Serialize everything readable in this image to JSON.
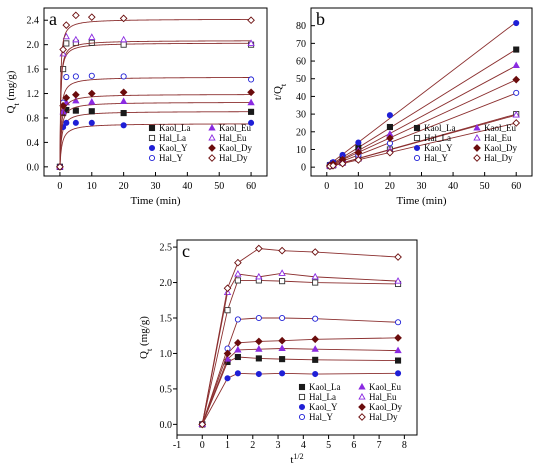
{
  "colors": {
    "kaol": "#1a1a1a",
    "hal": "#333333",
    "Y": "#1f1fd6",
    "Eu": "#8b2be2",
    "Dy": "#6b0d0d",
    "fit": "#8b2f2f"
  },
  "chart_data": [
    {
      "type": "scatter",
      "panel": "a",
      "xlabel": "Time (min)",
      "ylabel": "Qt (mg/g)",
      "ylabel_main": "Q",
      "ylabel_sub": "t",
      "ylabel_unit": " (mg/g)",
      "xlim": [
        -5,
        65
      ],
      "ylim": [
        -0.15,
        2.6
      ],
      "xticks": [
        0,
        10,
        20,
        30,
        40,
        50,
        60
      ],
      "yticks": [
        0.0,
        0.4,
        0.8,
        1.2,
        1.6,
        2.0,
        2.4
      ],
      "ytick_labels": [
        "0.0",
        "0.4",
        "0.8",
        "1.2",
        "1.6",
        "2.0",
        "2.4"
      ],
      "legend": {
        "columns": 2,
        "placement": "lower right"
      },
      "x": [
        0,
        1,
        2,
        5,
        10,
        20,
        60
      ],
      "series": [
        {
          "name": "Kaol_La",
          "marker": "square-filled",
          "color": "kaol",
          "values": [
            0,
            0.88,
            0.93,
            0.92,
            0.91,
            0.88,
            0.9
          ],
          "fit_eq": 0.91
        },
        {
          "name": "Hal_La",
          "marker": "square-open",
          "color": "hal",
          "values": [
            0,
            1.6,
            2.02,
            2.03,
            2.03,
            2.0,
            2.0
          ],
          "fit_eq": 2.03
        },
        {
          "name": "Kaol_Y",
          "marker": "circle-filled",
          "color": "Y",
          "values": [
            0,
            0.65,
            0.72,
            0.72,
            0.72,
            0.68,
            0.72
          ],
          "fit_eq": 0.71
        },
        {
          "name": "Hal_Y",
          "marker": "circle-open",
          "color": "Y",
          "values": [
            0,
            1.05,
            1.47,
            1.48,
            1.49,
            1.48,
            1.43
          ],
          "fit_eq": 1.47
        },
        {
          "name": "Kaol_Eu",
          "marker": "triangle-filled",
          "color": "Eu",
          "values": [
            0,
            0.9,
            1.05,
            1.08,
            1.06,
            1.07,
            1.05
          ],
          "fit_eq": 1.06
        },
        {
          "name": "Hal_Eu",
          "marker": "triangle-open",
          "color": "Eu",
          "values": [
            0,
            1.85,
            2.13,
            2.08,
            2.12,
            2.08,
            2.02
          ],
          "fit_eq": 2.07
        },
        {
          "name": "Kaol_Dy",
          "marker": "diamond-filled",
          "color": "Dy",
          "values": [
            0,
            1.0,
            1.13,
            1.18,
            1.2,
            1.22,
            1.22
          ],
          "fit_eq": 1.19
        },
        {
          "name": "Hal_Dy",
          "marker": "diamond-open",
          "color": "Dy",
          "values": [
            0,
            1.92,
            2.32,
            2.48,
            2.45,
            2.43,
            2.4
          ],
          "fit_eq": 2.42
        }
      ]
    },
    {
      "type": "scatter",
      "panel": "b",
      "xlabel": "Time (min)",
      "ylabel": "t/Qt",
      "ylabel_main": "t/Q",
      "ylabel_sub": "t",
      "xlim": [
        -5,
        65
      ],
      "ylim": [
        -5,
        90
      ],
      "xticks": [
        0,
        10,
        20,
        30,
        40,
        50,
        60
      ],
      "yticks": [
        0,
        10,
        20,
        30,
        40,
        50,
        60,
        70,
        80
      ],
      "ytick_labels": [
        "0",
        "10",
        "20",
        "30",
        "40",
        "50",
        "60",
        "70",
        "80"
      ],
      "legend": {
        "columns": 2,
        "placement": "lower right"
      },
      "x": [
        1,
        2,
        5,
        10,
        20,
        60
      ],
      "series": [
        {
          "name": "Kaol_La",
          "marker": "square-filled",
          "color": "kaol",
          "values": [
            1.1,
            2.2,
            5.4,
            11.0,
            22.7,
            66.5
          ]
        },
        {
          "name": "Hal_La",
          "marker": "square-open",
          "color": "hal",
          "values": [
            0.6,
            1.0,
            2.5,
            4.9,
            10.0,
            30.0
          ]
        },
        {
          "name": "Kaol_Y",
          "marker": "circle-filled",
          "color": "Y",
          "values": [
            1.5,
            2.8,
            6.9,
            13.9,
            29.4,
            81.5
          ]
        },
        {
          "name": "Hal_Y",
          "marker": "circle-open",
          "color": "Y",
          "values": [
            0.95,
            1.4,
            3.4,
            6.7,
            13.5,
            42.0
          ]
        },
        {
          "name": "Kaol_Eu",
          "marker": "triangle-filled",
          "color": "Eu",
          "values": [
            1.1,
            1.9,
            4.6,
            9.4,
            18.7,
            57.5
          ]
        },
        {
          "name": "Hal_Eu",
          "marker": "triangle-open",
          "color": "Eu",
          "values": [
            0.55,
            0.95,
            2.4,
            4.8,
            9.6,
            29.5
          ]
        },
        {
          "name": "Kaol_Dy",
          "marker": "diamond-filled",
          "color": "Dy",
          "values": [
            1.0,
            1.8,
            4.2,
            8.3,
            16.4,
            49.5
          ]
        },
        {
          "name": "Hal_Dy",
          "marker": "diamond-open",
          "color": "Dy",
          "values": [
            0.52,
            0.86,
            2.0,
            4.1,
            8.2,
            25.0
          ]
        }
      ]
    },
    {
      "type": "scatter",
      "panel": "c",
      "xlabel": "t1/2",
      "xlabel_main": "t",
      "xlabel_sup": "1/2",
      "ylabel": "Qt (mg/g)",
      "ylabel_main": "Q",
      "ylabel_sub": "t",
      "ylabel_unit": " (mg/g)",
      "xlim": [
        -1,
        8.5
      ],
      "ylim": [
        -0.15,
        2.6
      ],
      "xticks": [
        -1,
        0,
        1,
        2,
        3,
        4,
        5,
        6,
        7,
        8
      ],
      "yticks": [
        0.0,
        0.5,
        1.0,
        1.5,
        2.0,
        2.5
      ],
      "ytick_labels": [
        "0.0",
        "0.5",
        "1.0",
        "1.5",
        "2.0",
        "2.5"
      ],
      "legend": {
        "columns": 2,
        "placement": "lower right"
      },
      "x": [
        0,
        1,
        1.41,
        2.24,
        3.16,
        4.47,
        7.75
      ],
      "series": [
        {
          "name": "Kaol_La",
          "marker": "square-filled",
          "color": "kaol",
          "values": [
            0,
            0.88,
            0.95,
            0.93,
            0.92,
            0.91,
            0.9
          ]
        },
        {
          "name": "Hal_La",
          "marker": "square-open",
          "color": "hal",
          "values": [
            0,
            1.61,
            2.03,
            2.03,
            2.02,
            2.0,
            1.98
          ]
        },
        {
          "name": "Kaol_Y",
          "marker": "circle-filled",
          "color": "Y",
          "values": [
            0,
            0.65,
            0.72,
            0.71,
            0.72,
            0.71,
            0.72
          ]
        },
        {
          "name": "Hal_Y",
          "marker": "circle-open",
          "color": "Y",
          "values": [
            0,
            1.07,
            1.48,
            1.5,
            1.5,
            1.49,
            1.44
          ]
        },
        {
          "name": "Kaol_Eu",
          "marker": "triangle-filled",
          "color": "Eu",
          "values": [
            0,
            0.92,
            1.05,
            1.06,
            1.07,
            1.06,
            1.04
          ]
        },
        {
          "name": "Hal_Eu",
          "marker": "triangle-open",
          "color": "Eu",
          "values": [
            0,
            1.86,
            2.12,
            2.08,
            2.13,
            2.08,
            2.02
          ]
        },
        {
          "name": "Kaol_Dy",
          "marker": "diamond-filled",
          "color": "Dy",
          "values": [
            0,
            1.0,
            1.15,
            1.17,
            1.18,
            1.2,
            1.22
          ]
        },
        {
          "name": "Hal_Dy",
          "marker": "diamond-open",
          "color": "Dy",
          "values": [
            0,
            1.92,
            2.28,
            2.48,
            2.45,
            2.43,
            2.36
          ]
        }
      ]
    }
  ]
}
